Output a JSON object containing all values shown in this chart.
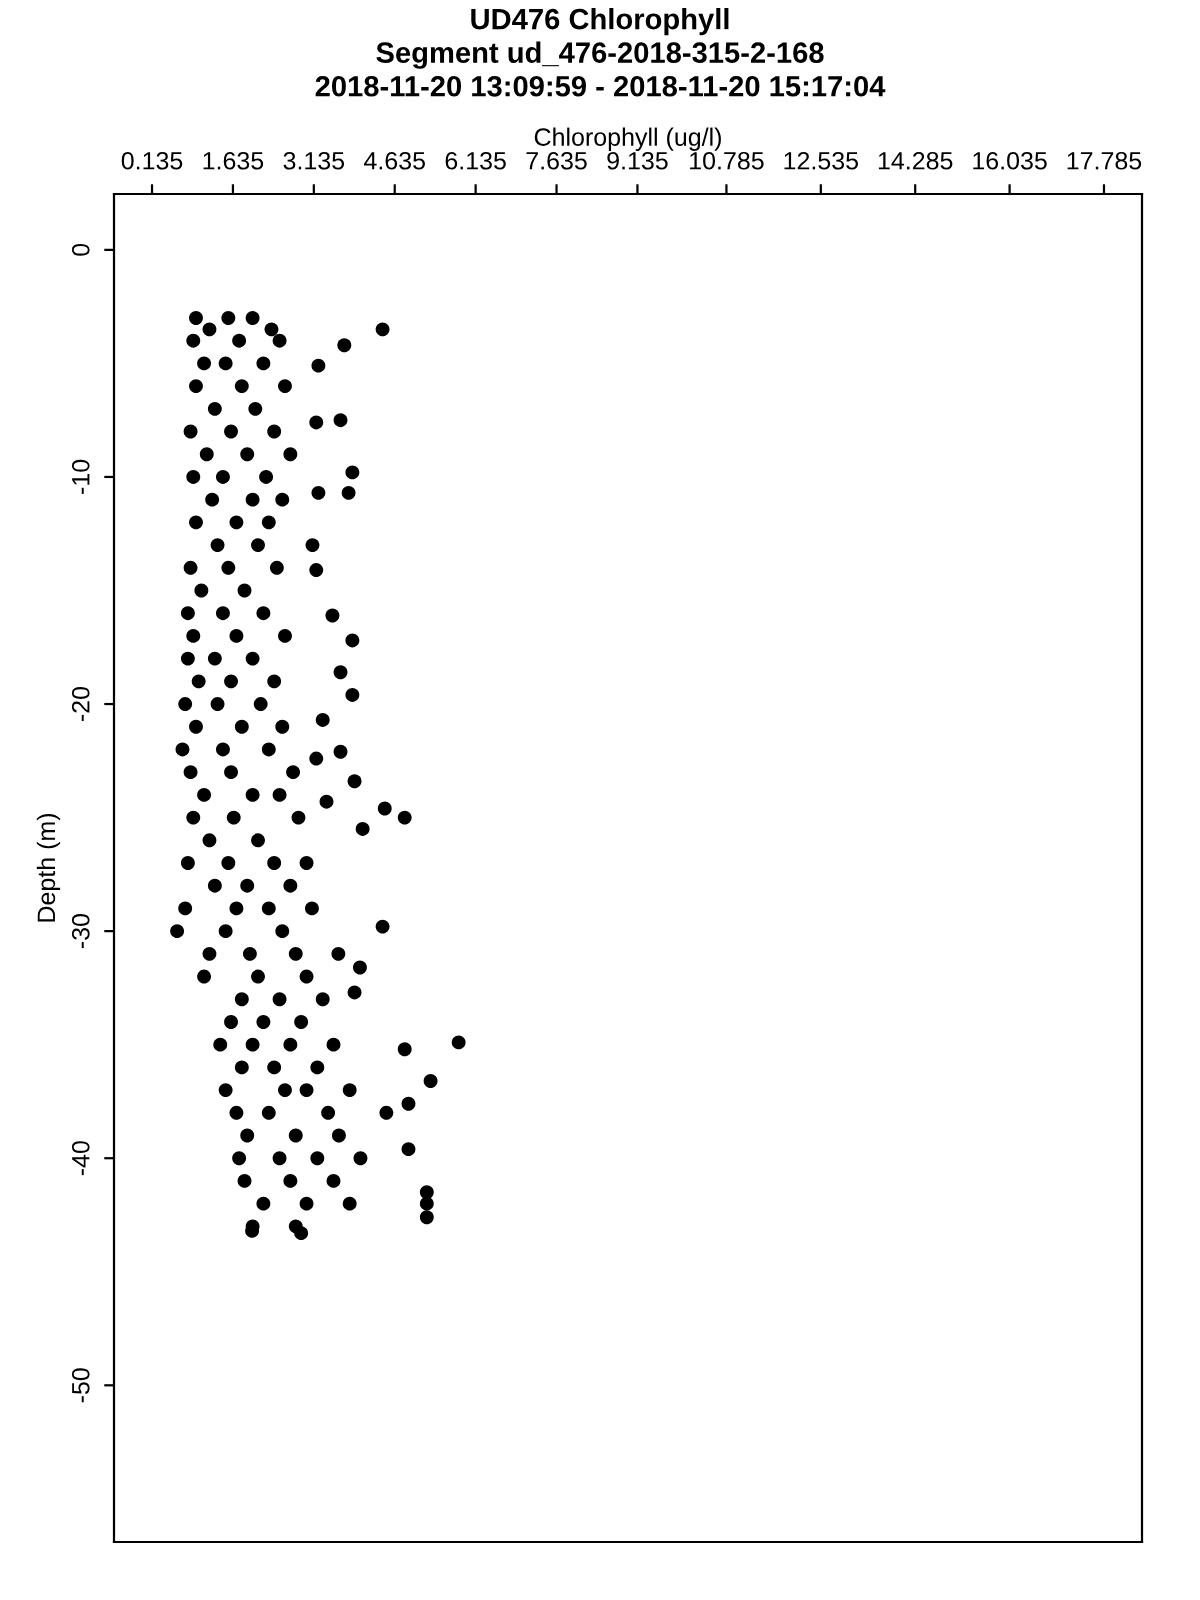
{
  "chart_data": {
    "type": "scatter",
    "title": "UD476 Chlorophyll\nSegment ud_476-2018-315-2-168\n2018-11-20 13:09:59 - 2018-11-20 15:17:04",
    "xlabel": "Chlorophyll (ug/l)",
    "ylabel": "Depth (m)",
    "marker": "circle",
    "grid": false,
    "legend": false,
    "xlim": [
      -0.57,
      18.49
    ],
    "xticks": [
      0.135,
      1.635,
      3.135,
      4.635,
      6.135,
      7.635,
      9.135,
      10.785,
      12.535,
      14.285,
      16.035,
      17.785
    ],
    "ylim": [
      -56.9,
      2.46
    ],
    "yticks": [
      0,
      -10,
      -20,
      -30,
      -40,
      -50
    ],
    "series": [
      {
        "color": "#000000",
        "x": [
          4.41,
          3.7,
          3.22,
          3.63,
          3.18,
          3.85,
          3.78,
          3.22,
          3.11,
          3.18,
          3.48,
          3.85,
          3.63,
          3.85,
          3.3,
          3.18,
          3.63,
          3.89,
          3.37,
          4.45,
          4.82,
          4.04,
          4.41,
          3.59,
          3.99,
          3.89,
          5.82,
          4.82,
          5.3,
          4.89,
          4.48,
          4.89,
          5.23,
          5.23,
          5.23,
          2.9,
          1.99,
          0.95,
          1.55,
          2.0,
          1.2,
          2.35,
          0.9,
          1.75,
          2.5,
          1.1,
          1.5,
          2.2,
          0.95,
          1.8,
          2.6,
          1.3,
          2.05,
          0.85,
          1.6,
          2.4,
          1.15,
          1.9,
          2.7,
          0.9,
          1.45,
          2.25,
          1.25,
          2.0,
          2.55,
          0.95,
          1.7,
          2.3,
          1.35,
          2.1,
          0.85,
          1.55,
          2.45,
          1.05,
          1.85,
          0.8,
          1.45,
          2.2,
          0.9,
          1.7,
          2.6,
          0.8,
          1.3,
          2.0,
          1.0,
          1.6,
          2.4,
          0.75,
          1.35,
          2.15,
          0.95,
          1.8,
          2.55,
          0.7,
          1.45,
          2.3,
          0.85,
          1.6,
          2.75,
          1.1,
          2.0,
          2.5,
          0.9,
          1.65,
          2.85,
          1.2,
          2.1,
          0.8,
          1.55,
          2.4,
          3.0,
          1.3,
          1.9,
          2.7,
          0.75,
          1.7,
          2.3,
          3.1,
          0.6,
          1.5,
          2.55,
          1.2,
          1.95,
          2.8,
          1.1,
          2.1,
          3.0,
          1.8,
          2.5,
          3.3,
          1.6,
          2.2,
          2.9,
          1.4,
          2.0,
          2.7,
          3.5,
          1.8,
          2.4,
          3.2,
          1.5,
          2.6,
          3.0,
          3.8,
          1.7,
          2.3,
          3.4,
          1.9,
          2.8,
          3.6,
          1.75,
          2.5,
          3.2,
          4.0,
          1.85,
          2.7,
          3.5,
          2.2,
          3.0,
          3.8,
          2.0,
          2.8
        ],
        "values": [
          -3.5,
          -4.2,
          -5.1,
          -7.5,
          -7.6,
          -9.8,
          -10.7,
          -10.7,
          -13.0,
          -14.1,
          -16.1,
          -17.2,
          -18.6,
          -19.6,
          -20.7,
          -22.4,
          -22.1,
          -23.4,
          -24.3,
          -24.6,
          -25.0,
          -25.5,
          -29.8,
          -31.0,
          -31.6,
          -32.7,
          -34.9,
          -35.2,
          -36.6,
          -37.6,
          -38.0,
          -39.6,
          -41.5,
          -42.0,
          -42.6,
          -43.3,
          -43.2,
          -3.0,
          -3.0,
          -3.0,
          -3.5,
          -3.5,
          -4,
          -4,
          -4,
          -5,
          -5,
          -5,
          -6,
          -6,
          -6,
          -7,
          -7,
          -8,
          -8,
          -8,
          -9,
          -9,
          -9,
          -10,
          -10,
          -10,
          -11,
          -11,
          -11,
          -12,
          -12,
          -12,
          -13,
          -13,
          -14,
          -14,
          -14,
          -15,
          -15,
          -16,
          -16,
          -16,
          -17,
          -17,
          -17,
          -18,
          -18,
          -18,
          -19,
          -19,
          -19,
          -20,
          -20,
          -20,
          -21,
          -21,
          -21,
          -22,
          -22,
          -22,
          -23,
          -23,
          -23,
          -24,
          -24,
          -24,
          -25,
          -25,
          -25,
          -26,
          -26,
          -27,
          -27,
          -27,
          -27,
          -28,
          -28,
          -28,
          -29,
          -29,
          -29,
          -29,
          -30,
          -30,
          -30,
          -31,
          -31,
          -31,
          -32,
          -32,
          -32,
          -33,
          -33,
          -33,
          -34,
          -34,
          -34,
          -35,
          -35,
          -35,
          -35,
          -36,
          -36,
          -36,
          -37,
          -37,
          -37,
          -37,
          -38,
          -38,
          -38,
          -39,
          -39,
          -39,
          -40,
          -40,
          -40,
          -40,
          -41,
          -41,
          -41,
          -42,
          -42,
          -42,
          -43,
          -43
        ]
      }
    ]
  }
}
